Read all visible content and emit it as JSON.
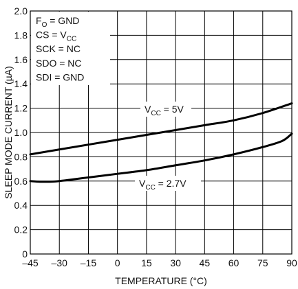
{
  "chart_data": {
    "type": "line",
    "title": "",
    "xlabel": "TEMPERATURE (°C)",
    "ylabel": "SLEEP MODE CURRENT (µA)",
    "xlim": [
      -45,
      90
    ],
    "ylim": [
      0,
      2.0
    ],
    "grid": true,
    "x_ticks": [
      -45,
      -30,
      -15,
      0,
      15,
      30,
      45,
      60,
      75,
      90
    ],
    "x_tick_labels": [
      "–45",
      "–30",
      "–15",
      "0",
      "15",
      "30",
      "45",
      "60",
      "75",
      "90"
    ],
    "y_ticks": [
      0,
      0.2,
      0.4,
      0.6,
      0.8,
      1.0,
      1.2,
      1.4,
      1.6,
      1.8,
      2.0
    ],
    "y_tick_labels": [
      "0",
      "0.2",
      "0.4",
      "0.6",
      "0.8",
      "1.0",
      "1.2",
      "1.4",
      "1.6",
      "1.8",
      "2.0"
    ],
    "series": [
      {
        "x": [
          -45,
          -30,
          -15,
          0,
          15,
          30,
          45,
          60,
          75,
          90
        ],
        "y": [
          0.82,
          0.86,
          0.9,
          0.94,
          0.98,
          1.02,
          1.06,
          1.1,
          1.16,
          1.24
        ]
      },
      {
        "x": [
          -45,
          -40,
          -35,
          -30,
          -15,
          0,
          15,
          30,
          45,
          60,
          75,
          85,
          90
        ],
        "y": [
          0.6,
          0.595,
          0.595,
          0.6,
          0.63,
          0.66,
          0.69,
          0.73,
          0.77,
          0.82,
          0.88,
          0.93,
          0.99
        ]
      }
    ],
    "series_labels": [
      {
        "base": "V",
        "sub": "CC",
        "rest": " = 5V"
      },
      {
        "base": "V",
        "sub": "CC",
        "rest": " = 2.7V"
      }
    ],
    "conditions": [
      {
        "base": "F",
        "sub": "O",
        "rest": " = GND"
      },
      {
        "base": "CS = V",
        "sub": "CC",
        "rest": ""
      },
      {
        "base": "SCK = NC",
        "sub": "",
        "rest": ""
      },
      {
        "base": "SDO = NC",
        "sub": "",
        "rest": ""
      },
      {
        "base": "SDI = GND",
        "sub": "",
        "rest": ""
      }
    ]
  }
}
